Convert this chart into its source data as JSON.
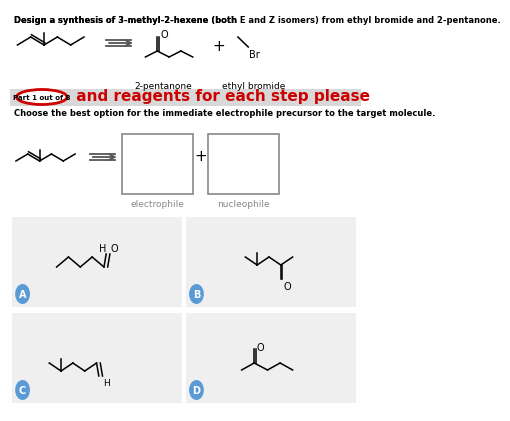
{
  "background_color": "#ffffff",
  "top_text_line1": "Design a synthesis of 3-methyl-2-hexene (both ",
  "top_text_bold1": "E",
  "top_text_mid": " and ",
  "top_text_bold2": "Z",
  "top_text_end": " isomers) from ethyl bromide and 2-pentanone.",
  "banner_bg": "#d8d8d8",
  "banner_text": " and reagents for each step please",
  "banner_text_color": "#cc0000",
  "part_label": "Part 1 out of 8",
  "part_circle_color": "#cc0000",
  "choose_text": "Choose the best option for the immediate electrophile precursor to the target molecule.",
  "label_2pentanone": "2-pentanone",
  "label_ethylbromide": "ethyl bromide",
  "label_electrophile": "electrophile",
  "label_nucleophile": "nucleophile",
  "option_labels": [
    "A",
    "B",
    "C",
    "D"
  ],
  "option_bg": "#efefef",
  "option_circle_color": "#5b9bd5",
  "option_circle_text_color": "#ffffff"
}
